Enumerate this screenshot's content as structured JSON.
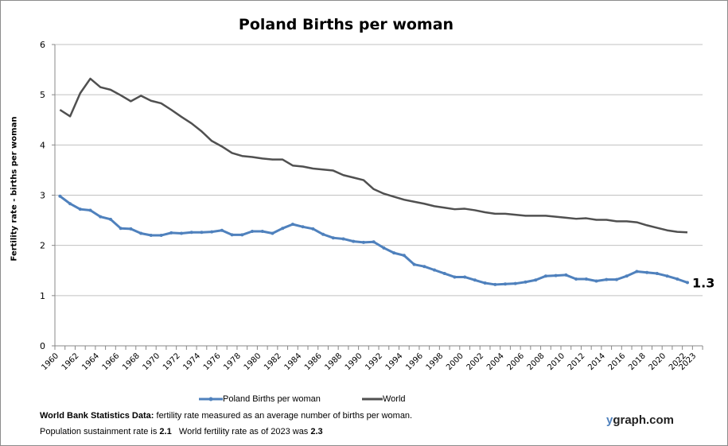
{
  "chart_data": {
    "type": "line",
    "title": "Poland Births per woman",
    "ylabel": "Fertility rate  - births per woman",
    "xlabel": "",
    "ylim": [
      0,
      6
    ],
    "yticks": [
      0,
      1,
      2,
      3,
      4,
      5,
      6
    ],
    "grid": true,
    "legend": "bottom",
    "x": [
      1960,
      1961,
      1962,
      1963,
      1964,
      1965,
      1966,
      1967,
      1968,
      1969,
      1970,
      1971,
      1972,
      1973,
      1974,
      1975,
      1976,
      1977,
      1978,
      1979,
      1980,
      1981,
      1982,
      1983,
      1984,
      1985,
      1986,
      1987,
      1988,
      1989,
      1990,
      1991,
      1992,
      1993,
      1994,
      1995,
      1996,
      1997,
      1998,
      1999,
      2000,
      2001,
      2002,
      2003,
      2004,
      2005,
      2006,
      2007,
      2008,
      2009,
      2010,
      2011,
      2012,
      2013,
      2014,
      2015,
      2016,
      2017,
      2018,
      2019,
      2020,
      2021,
      2022
    ],
    "xticks": [
      1960,
      1962,
      1964,
      1966,
      1968,
      1970,
      1972,
      1974,
      1976,
      1978,
      1980,
      1982,
      1984,
      1986,
      1988,
      1990,
      1992,
      1994,
      1996,
      1998,
      2000,
      2002,
      2004,
      2006,
      2008,
      2010,
      2012,
      2014,
      2016,
      2018,
      2020,
      2022,
      2023
    ],
    "series": [
      {
        "name": "Poland Births per woman",
        "color": "#4f81bd",
        "markers": true,
        "values": [
          2.98,
          2.83,
          2.72,
          2.7,
          2.57,
          2.52,
          2.34,
          2.33,
          2.24,
          2.2,
          2.2,
          2.25,
          2.24,
          2.26,
          2.26,
          2.27,
          2.3,
          2.21,
          2.21,
          2.28,
          2.28,
          2.24,
          2.34,
          2.42,
          2.37,
          2.33,
          2.22,
          2.15,
          2.13,
          2.08,
          2.06,
          2.07,
          1.95,
          1.85,
          1.8,
          1.62,
          1.58,
          1.51,
          1.44,
          1.37,
          1.37,
          1.31,
          1.25,
          1.22,
          1.23,
          1.24,
          1.27,
          1.31,
          1.39,
          1.4,
          1.41,
          1.33,
          1.33,
          1.29,
          1.32,
          1.32,
          1.39,
          1.48,
          1.46,
          1.44,
          1.39,
          1.33,
          1.26
        ]
      },
      {
        "name": "World",
        "color": "#505050",
        "markers": false,
        "values": [
          4.7,
          4.57,
          5.03,
          5.32,
          5.15,
          5.1,
          4.99,
          4.87,
          4.98,
          4.88,
          4.83,
          4.7,
          4.56,
          4.43,
          4.27,
          4.08,
          3.97,
          3.84,
          3.78,
          3.76,
          3.73,
          3.71,
          3.71,
          3.59,
          3.57,
          3.53,
          3.51,
          3.49,
          3.4,
          3.35,
          3.3,
          3.12,
          3.03,
          2.97,
          2.91,
          2.87,
          2.83,
          2.78,
          2.75,
          2.72,
          2.73,
          2.7,
          2.66,
          2.63,
          2.63,
          2.61,
          2.59,
          2.59,
          2.59,
          2.57,
          2.55,
          2.53,
          2.54,
          2.51,
          2.51,
          2.48,
          2.48,
          2.46,
          2.4,
          2.35,
          2.3,
          2.27,
          2.26
        ]
      }
    ],
    "annotations": [
      "1.3"
    ]
  },
  "footer": {
    "source_bold": "World Bank Statistics Data:",
    "source_text": " fertility rate measured as an average number  of births per woman.",
    "line2_a": "Population sustainment rate is ",
    "line2_b": "2.1",
    "line2_c": "   World fertility rate as of 2023 was ",
    "line2_d": "2.3",
    "brand_y": "y",
    "brand_rest": "graph.com"
  }
}
